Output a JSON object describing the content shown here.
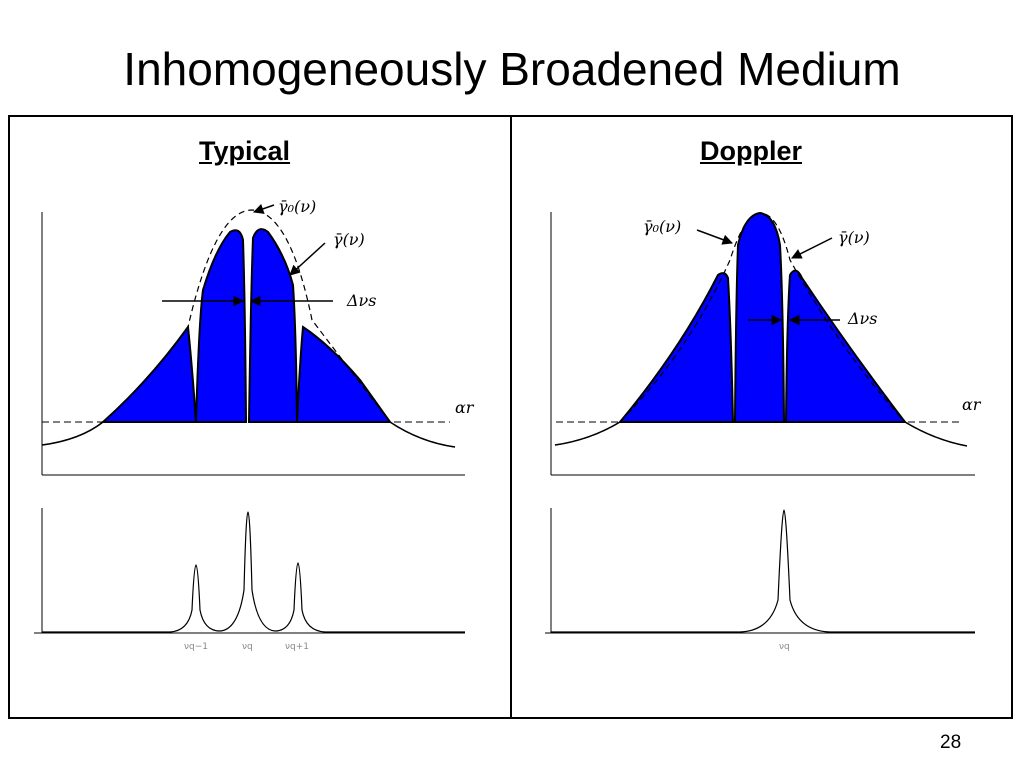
{
  "slide": {
    "title": "Inhomogeneously Broadened Medium",
    "page_number": "28"
  },
  "panels": {
    "typical": {
      "title": "Typical",
      "labels": {
        "envelope": "γ̄₀(ν)",
        "saturated": "γ̄(ν)",
        "hole_width": "Δνs",
        "loss": "αr"
      },
      "spectrum_ticks": [
        "νq−1",
        "νq",
        "νq+1"
      ]
    },
    "doppler": {
      "title": "Doppler",
      "labels": {
        "envelope": "γ̄₀(ν)",
        "saturated": "γ̄(ν)",
        "hole_width": "Δνs",
        "loss": "αr"
      },
      "spectrum_ticks": [
        "νq"
      ]
    }
  },
  "colors": {
    "fill": "#0000ff",
    "line": "#000000",
    "tick_text": "#888888"
  }
}
